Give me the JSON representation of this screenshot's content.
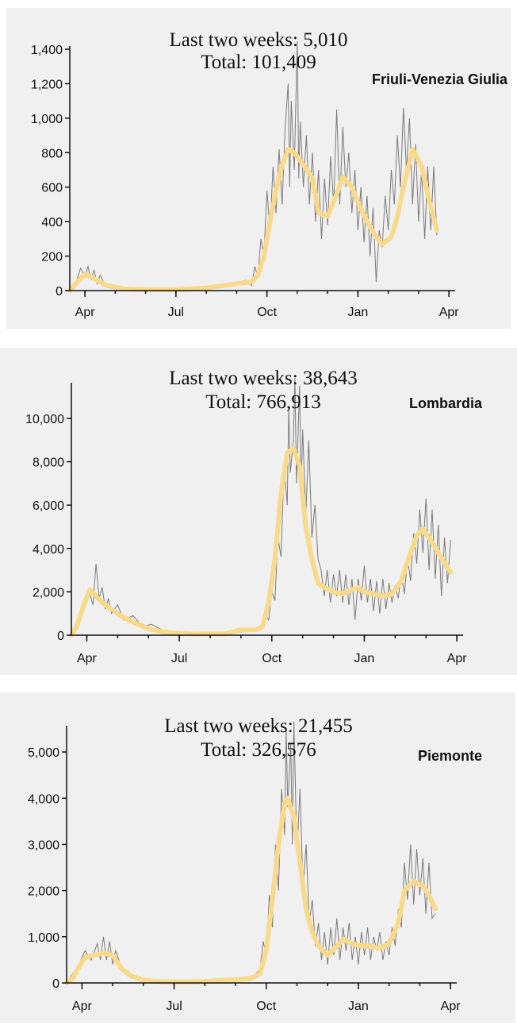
{
  "colors": {
    "panel_bg": "#f0f0f0",
    "raw_line": "#7a7a7a",
    "smooth_line": "#f9d98a"
  },
  "chart_data": [
    {
      "type": "line",
      "region": "Friuli-Venezia Giulia",
      "stats": {
        "last_two_weeks": "Last two weeks: 5,010",
        "total": "Total: 101,409"
      },
      "x_tick_labels": [
        "Apr",
        "Jul",
        "Oct",
        "Jan",
        "Apr"
      ],
      "x_tick_positions": [
        0.5,
        3.5,
        6.5,
        9.5,
        12.5
      ],
      "xlim": [
        0,
        12.6
      ],
      "ylim": [
        0,
        1400
      ],
      "y_ticks": [
        0,
        200,
        400,
        600,
        800,
        1000,
        1200,
        1400
      ],
      "y_tick_labels": [
        "0",
        "200",
        "400",
        "600",
        "800",
        "1,000",
        "1,200",
        "1,400"
      ],
      "series": [
        {
          "kind": "smoothed",
          "x": [
            0,
            0.3,
            0.5,
            0.8,
            1.2,
            1.8,
            2.5,
            3.5,
            4.5,
            5.5,
            6.0,
            6.2,
            6.4,
            6.6,
            6.8,
            7.0,
            7.2,
            7.4,
            7.7,
            8.0,
            8.2,
            8.5,
            8.8,
            9.0,
            9.3,
            9.5,
            9.8,
            10.1,
            10.3,
            10.6,
            10.8,
            11.0,
            11.3,
            11.6,
            11.8,
            12.0,
            12.1
          ],
          "y": [
            0,
            60,
            95,
            70,
            30,
            10,
            5,
            5,
            15,
            40,
            50,
            90,
            200,
            400,
            580,
            730,
            820,
            800,
            730,
            650,
            450,
            430,
            560,
            660,
            600,
            510,
            400,
            310,
            270,
            310,
            430,
            600,
            820,
            720,
            560,
            420,
            350
          ]
        },
        {
          "kind": "raw",
          "x": [
            0,
            0.2,
            0.35,
            0.5,
            0.6,
            0.7,
            0.8,
            0.9,
            1.0,
            1.2,
            1.5,
            2,
            3,
            4,
            5,
            5.8,
            6.0,
            6.1,
            6.2,
            6.3,
            6.4,
            6.5,
            6.6,
            6.7,
            6.8,
            6.9,
            7.0,
            7.1,
            7.2,
            7.25,
            7.3,
            7.4,
            7.5,
            7.55,
            7.6,
            7.7,
            7.8,
            7.9,
            8.0,
            8.1,
            8.2,
            8.3,
            8.4,
            8.5,
            8.6,
            8.7,
            8.8,
            8.9,
            9.0,
            9.1,
            9.2,
            9.3,
            9.4,
            9.5,
            9.6,
            9.7,
            9.8,
            9.9,
            10.0,
            10.1,
            10.2,
            10.3,
            10.4,
            10.5,
            10.6,
            10.7,
            10.8,
            10.9,
            11.0,
            11.1,
            11.2,
            11.3,
            11.4,
            11.5,
            11.6,
            11.7,
            11.8,
            11.9,
            12.0,
            12.1
          ],
          "y": [
            0,
            40,
            130,
            80,
            140,
            60,
            120,
            40,
            90,
            20,
            10,
            5,
            3,
            8,
            25,
            60,
            30,
            140,
            80,
            300,
            200,
            580,
            350,
            720,
            450,
            820,
            500,
            950,
            1200,
            600,
            1100,
            700,
            1450,
            650,
            980,
            600,
            900,
            500,
            800,
            400,
            700,
            300,
            650,
            380,
            780,
            500,
            1050,
            500,
            950,
            600,
            800,
            450,
            700,
            350,
            600,
            280,
            550,
            200,
            480,
            50,
            350,
            250,
            550,
            350,
            700,
            500,
            900,
            600,
            1060,
            700,
            1000,
            500,
            850,
            400,
            700,
            300,
            720,
            350,
            720,
            320
          ]
        }
      ]
    },
    {
      "type": "line",
      "region": "Lombardia",
      "stats": {
        "last_two_weeks": "Last two weeks: 38,643",
        "total": "Total: 766,913"
      },
      "x_tick_labels": [
        "Apr",
        "Jul",
        "Oct",
        "Jan",
        "Apr"
      ],
      "x_tick_positions": [
        0.5,
        3.5,
        6.5,
        9.5,
        12.5
      ],
      "xlim": [
        0,
        12.6
      ],
      "ylim": [
        0,
        11500
      ],
      "y_ticks": [
        0,
        2000,
        4000,
        6000,
        8000,
        10000
      ],
      "y_tick_labels": [
        "0",
        "2,000",
        "4,000",
        "6,000",
        "8,000",
        "10,000"
      ],
      "series": [
        {
          "kind": "smoothed",
          "x": [
            0,
            0.2,
            0.4,
            0.6,
            0.8,
            1.0,
            1.3,
            1.6,
            2.0,
            2.5,
            3.0,
            3.5,
            4.0,
            5.0,
            5.5,
            6.0,
            6.2,
            6.4,
            6.6,
            6.8,
            7.0,
            7.2,
            7.4,
            7.6,
            7.8,
            8.0,
            8.2,
            8.5,
            8.8,
            9.1,
            9.3,
            9.5,
            9.8,
            10.1,
            10.4,
            10.7,
            11.0,
            11.2,
            11.4,
            11.6,
            11.9,
            12.3
          ],
          "y": [
            0,
            500,
            1400,
            2100,
            1800,
            1500,
            1200,
            900,
            600,
            300,
            150,
            80,
            50,
            60,
            250,
            250,
            400,
            1500,
            3500,
            6500,
            8400,
            8600,
            7800,
            5000,
            3500,
            2400,
            2200,
            2000,
            1900,
            2100,
            2200,
            2000,
            1900,
            1800,
            1900,
            2500,
            3800,
            4600,
            4900,
            4500,
            3800,
            2900
          ]
        },
        {
          "kind": "raw",
          "x": [
            0,
            0.2,
            0.35,
            0.5,
            0.6,
            0.7,
            0.8,
            0.9,
            1.0,
            1.1,
            1.2,
            1.3,
            1.5,
            1.7,
            2.0,
            2.3,
            2.6,
            3.0,
            3.5,
            4.0,
            5.0,
            5.8,
            6.1,
            6.3,
            6.4,
            6.5,
            6.6,
            6.7,
            6.8,
            6.9,
            7.0,
            7.05,
            7.1,
            7.2,
            7.25,
            7.3,
            7.4,
            7.45,
            7.5,
            7.6,
            7.7,
            7.8,
            7.9,
            8.0,
            8.1,
            8.2,
            8.3,
            8.4,
            8.5,
            8.6,
            8.7,
            8.8,
            8.9,
            9.0,
            9.1,
            9.2,
            9.3,
            9.4,
            9.5,
            9.6,
            9.7,
            9.8,
            9.9,
            10.0,
            10.1,
            10.2,
            10.3,
            10.4,
            10.5,
            10.6,
            10.7,
            10.8,
            10.9,
            11.0,
            11.1,
            11.2,
            11.3,
            11.4,
            11.5,
            11.6,
            11.7,
            11.8,
            11.9,
            12.0,
            12.1,
            12.2,
            12.3
          ],
          "y": [
            0,
            600,
            900,
            1600,
            1900,
            1400,
            3300,
            1700,
            2200,
            1200,
            1700,
            1000,
            1400,
            700,
            900,
            400,
            500,
            200,
            100,
            60,
            50,
            200,
            300,
            900,
            700,
            2000,
            1600,
            4500,
            3600,
            7800,
            6000,
            10500,
            7500,
            9000,
            12000,
            7000,
            11500,
            6500,
            9500,
            5500,
            9000,
            4500,
            6000,
            3500,
            3000,
            1800,
            3000,
            1500,
            2800,
            1800,
            3000,
            1500,
            2800,
            1400,
            2600,
            700,
            2600,
            1600,
            3200,
            1500,
            2600,
            1100,
            2500,
            1000,
            2600,
            1200,
            2400,
            1500,
            2300,
            1700,
            2800,
            1900,
            3600,
            2500,
            4700,
            3300,
            5800,
            3800,
            6300,
            3000,
            5800,
            2600,
            5100,
            1800,
            4500,
            2400,
            4400
          ]
        }
      ]
    },
    {
      "type": "line",
      "region": "Piemonte",
      "stats": {
        "last_two_weeks": "Last two weeks: 21,455",
        "total": "Total: 326,576"
      },
      "x_tick_labels": [
        "Apr",
        "Jul",
        "Oct",
        "Jan",
        "Apr"
      ],
      "x_tick_positions": [
        0.5,
        3.5,
        6.5,
        9.5,
        12.5
      ],
      "xlim": [
        0,
        12.6
      ],
      "ylim": [
        0,
        5500
      ],
      "y_ticks": [
        0,
        1000,
        2000,
        3000,
        4000,
        5000
      ],
      "y_tick_labels": [
        "0",
        "1,000",
        "2,000",
        "3,000",
        "4,000",
        "5,000"
      ],
      "series": [
        {
          "kind": "smoothed",
          "x": [
            0,
            0.2,
            0.4,
            0.6,
            0.9,
            1.2,
            1.5,
            1.8,
            2.1,
            2.5,
            3.0,
            3.5,
            4.5,
            5.5,
            6.0,
            6.3,
            6.5,
            6.7,
            6.9,
            7.1,
            7.2,
            7.4,
            7.6,
            7.8,
            8.0,
            8.2,
            8.5,
            8.8,
            9.0,
            9.3,
            9.6,
            9.9,
            10.2,
            10.5,
            10.8,
            11.0,
            11.3,
            11.6,
            11.8,
            12.0
          ],
          "y": [
            0,
            100,
            350,
            550,
            600,
            650,
            600,
            300,
            150,
            60,
            30,
            20,
            30,
            70,
            100,
            200,
            700,
            1800,
            3000,
            3900,
            4000,
            3600,
            2600,
            1600,
            1100,
            800,
            600,
            800,
            950,
            850,
            800,
            800,
            750,
            850,
            1300,
            2000,
            2200,
            2100,
            1900,
            1600
          ]
        },
        {
          "kind": "raw",
          "x": [
            0,
            0.2,
            0.4,
            0.6,
            0.8,
            1.0,
            1.1,
            1.2,
            1.3,
            1.4,
            1.5,
            1.6,
            1.8,
            2.0,
            2.3,
            2.7,
            3.2,
            3.8,
            4.5,
            5.5,
            6.1,
            6.3,
            6.4,
            6.5,
            6.6,
            6.7,
            6.8,
            6.9,
            7.0,
            7.1,
            7.15,
            7.2,
            7.3,
            7.35,
            7.4,
            7.5,
            7.6,
            7.7,
            7.8,
            7.9,
            8.0,
            8.1,
            8.2,
            8.3,
            8.4,
            8.5,
            8.6,
            8.7,
            8.8,
            8.9,
            9.0,
            9.1,
            9.2,
            9.3,
            9.4,
            9.5,
            9.6,
            9.7,
            9.8,
            9.9,
            10.0,
            10.1,
            10.2,
            10.3,
            10.4,
            10.5,
            10.6,
            10.7,
            10.8,
            10.9,
            11.0,
            11.1,
            11.2,
            11.3,
            11.4,
            11.5,
            11.6,
            11.7,
            11.8,
            11.9,
            12.0
          ],
          "y": [
            0,
            200,
            400,
            700,
            500,
            850,
            500,
            1000,
            500,
            900,
            400,
            700,
            300,
            250,
            100,
            60,
            30,
            20,
            30,
            80,
            150,
            300,
            900,
            600,
            1900,
            1200,
            3000,
            2000,
            4200,
            3200,
            5500,
            3800,
            5200,
            3000,
            5900,
            2800,
            4200,
            2000,
            3000,
            1300,
            1800,
            800,
            1300,
            500,
            1100,
            400,
            1200,
            600,
            1400,
            500,
            1200,
            700,
            1300,
            500,
            1000,
            400,
            1100,
            600,
            1200,
            500,
            1000,
            700,
            1100,
            500,
            900,
            600,
            1200,
            800,
            1600,
            1200,
            2600,
            1800,
            3000,
            1700,
            2900,
            1900,
            2700,
            1500,
            2600,
            1400,
            1500
          ]
        }
      ]
    }
  ]
}
